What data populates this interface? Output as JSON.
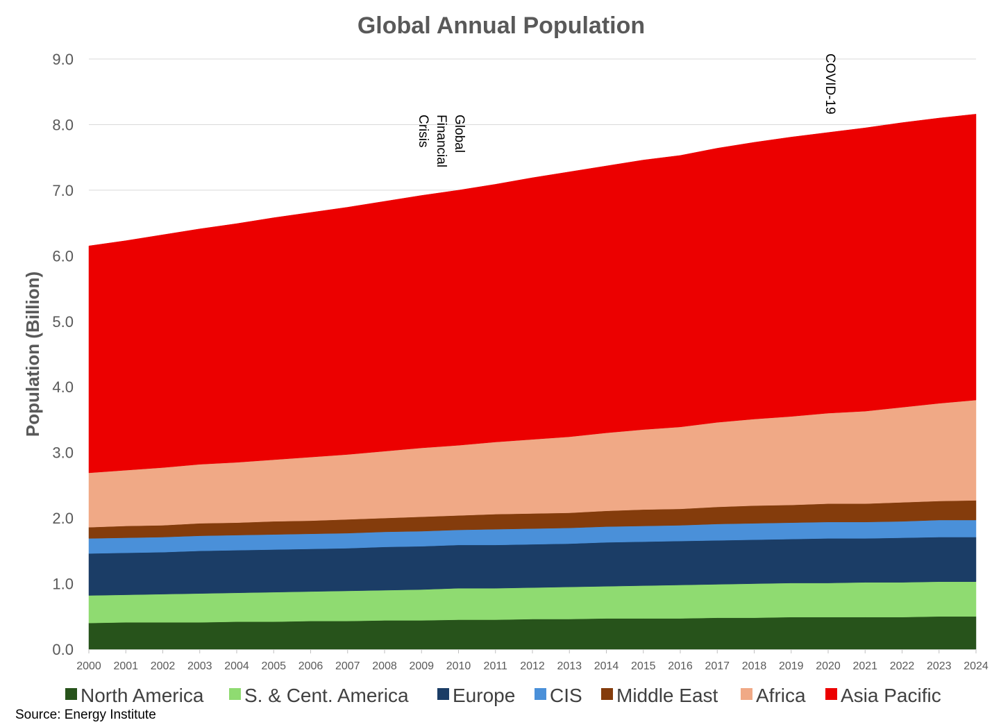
{
  "chart_data": {
    "type": "area",
    "stacked": true,
    "title": "Global Annual Population",
    "xlabel": "",
    "ylabel": "Population (Billion)",
    "ylim": [
      0,
      9
    ],
    "yticks": [
      "0.0",
      "1.0",
      "2.0",
      "3.0",
      "4.0",
      "5.0",
      "6.0",
      "7.0",
      "8.0",
      "9.0"
    ],
    "grid": true,
    "categories": [
      "2000",
      "2001",
      "2002",
      "2003",
      "2004",
      "2005",
      "2006",
      "2007",
      "2008",
      "2009",
      "2010",
      "2011",
      "2012",
      "2013",
      "2014",
      "2015",
      "2016",
      "2017",
      "2018",
      "2019",
      "2020",
      "2021",
      "2022",
      "2023",
      "2024"
    ],
    "series": [
      {
        "name": "North America",
        "color": "#27531b",
        "values": [
          0.4,
          0.41,
          0.41,
          0.41,
          0.42,
          0.42,
          0.43,
          0.43,
          0.44,
          0.44,
          0.45,
          0.45,
          0.46,
          0.46,
          0.47,
          0.47,
          0.47,
          0.48,
          0.48,
          0.49,
          0.49,
          0.49,
          0.49,
          0.5,
          0.5
        ]
      },
      {
        "name": "S. & Cent. America",
        "color": "#8fdb71",
        "values": [
          0.42,
          0.42,
          0.43,
          0.44,
          0.44,
          0.45,
          0.45,
          0.46,
          0.46,
          0.47,
          0.48,
          0.48,
          0.48,
          0.49,
          0.49,
          0.5,
          0.51,
          0.51,
          0.52,
          0.52,
          0.52,
          0.53,
          0.53,
          0.53,
          0.53
        ]
      },
      {
        "name": "Europe",
        "color": "#1b3d66",
        "values": [
          0.64,
          0.64,
          0.64,
          0.65,
          0.65,
          0.65,
          0.65,
          0.65,
          0.66,
          0.66,
          0.66,
          0.66,
          0.66,
          0.66,
          0.67,
          0.67,
          0.67,
          0.67,
          0.67,
          0.67,
          0.68,
          0.67,
          0.68,
          0.68,
          0.68
        ]
      },
      {
        "name": "CIS",
        "color": "#4a90d9",
        "values": [
          0.23,
          0.23,
          0.23,
          0.23,
          0.23,
          0.23,
          0.23,
          0.23,
          0.23,
          0.23,
          0.23,
          0.24,
          0.24,
          0.24,
          0.24,
          0.24,
          0.24,
          0.25,
          0.25,
          0.25,
          0.25,
          0.25,
          0.25,
          0.26,
          0.26
        ]
      },
      {
        "name": "Middle East",
        "color": "#843c0c",
        "values": [
          0.17,
          0.18,
          0.18,
          0.19,
          0.19,
          0.2,
          0.2,
          0.21,
          0.21,
          0.22,
          0.22,
          0.23,
          0.23,
          0.23,
          0.24,
          0.25,
          0.25,
          0.26,
          0.27,
          0.27,
          0.28,
          0.28,
          0.29,
          0.29,
          0.3
        ]
      },
      {
        "name": "Africa",
        "color": "#f0a986",
        "values": [
          0.83,
          0.85,
          0.88,
          0.9,
          0.92,
          0.94,
          0.97,
          0.99,
          1.02,
          1.05,
          1.07,
          1.1,
          1.13,
          1.16,
          1.19,
          1.22,
          1.25,
          1.29,
          1.32,
          1.35,
          1.38,
          1.41,
          1.45,
          1.49,
          1.53
        ]
      },
      {
        "name": "Asia Pacific",
        "color": "#ec0000",
        "values": [
          3.46,
          3.5,
          3.55,
          3.59,
          3.64,
          3.69,
          3.73,
          3.77,
          3.81,
          3.85,
          3.89,
          3.93,
          3.99,
          4.04,
          4.07,
          4.11,
          4.14,
          4.18,
          4.22,
          4.26,
          4.28,
          4.32,
          4.34,
          4.35,
          4.36
        ]
      }
    ],
    "annotations": [
      {
        "at": "2010",
        "lines": [
          "Global",
          "Financial",
          "Crisis"
        ]
      },
      {
        "at": "2020",
        "lines": [
          "COVID-19"
        ]
      }
    ],
    "legend_position": "bottom",
    "source": "Source: Energy Institute"
  }
}
